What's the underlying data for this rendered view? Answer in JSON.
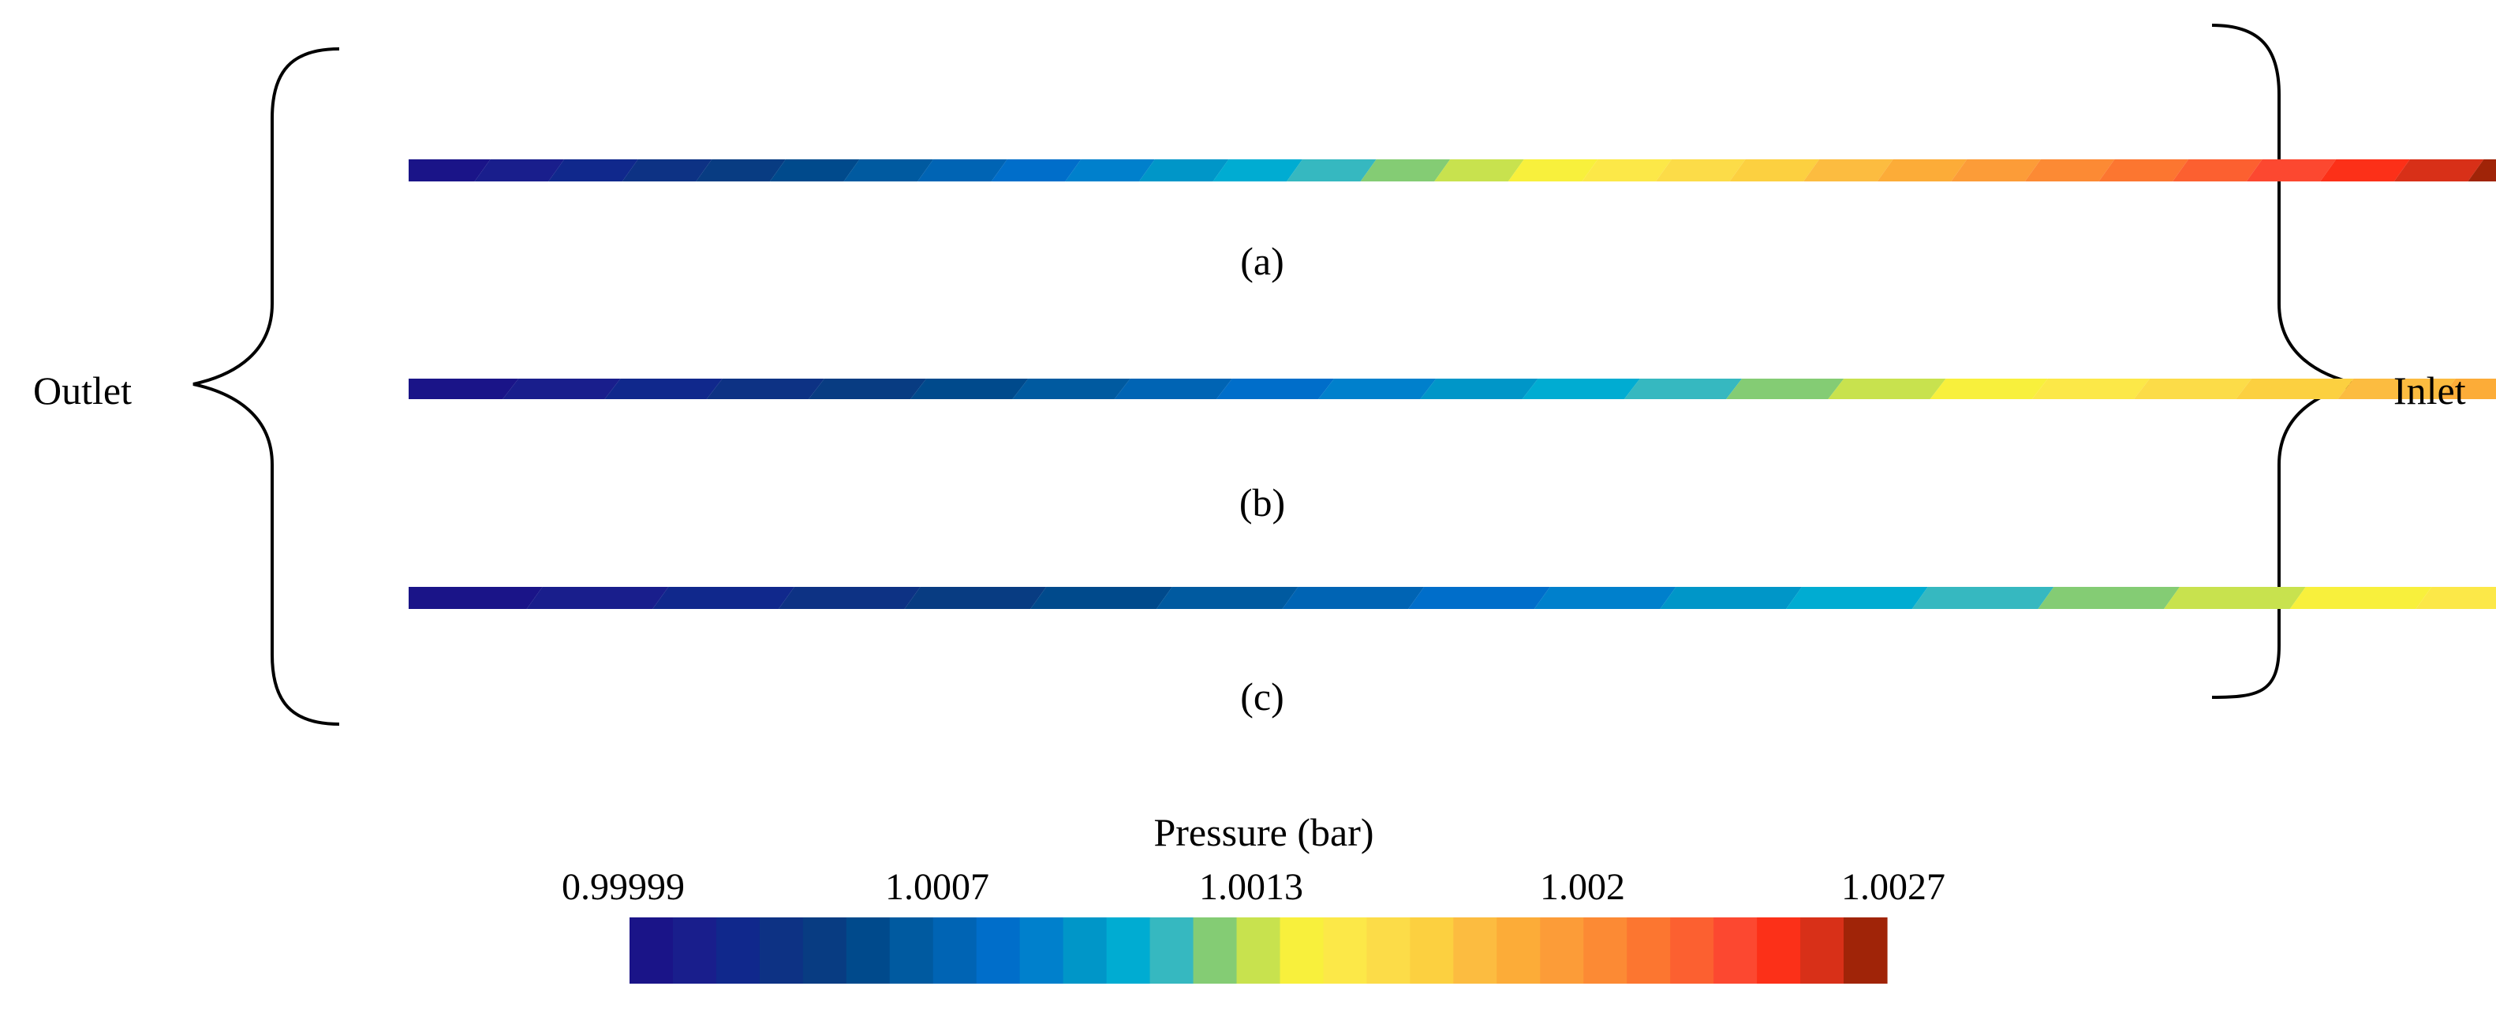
{
  "labels": {
    "outlet": "Outlet",
    "inlet": "Inlet",
    "panels": [
      "(a)",
      "(b)",
      "(c)"
    ]
  },
  "colorbar": {
    "title": "Pressure (bar)",
    "min": 0.99999,
    "max": 1.0027,
    "ticks": [
      "0.99999",
      "1.0007",
      "1.0013",
      "1.002",
      "1.0027"
    ],
    "colors": [
      "#1a1488",
      "#191e8c",
      "#10288c",
      "#0d3284",
      "#083c82",
      "#004a8c",
      "#005aa0",
      "#0064b4",
      "#006eca",
      "#0080cc",
      "#0096c8",
      "#00acd2",
      "#36b8c0",
      "#84cc74",
      "#c8e24e",
      "#f8f03c",
      "#fce848",
      "#fcdc48",
      "#fcd040",
      "#fcbc40",
      "#fcac38",
      "#fc9c38",
      "#fc8a34",
      "#fc7630",
      "#fc6030",
      "#fc4830",
      "#fc3018",
      "#d83018",
      "#a02408"
    ]
  },
  "bars": [
    {
      "id": "a",
      "stops": [
        0,
        29
      ]
    },
    {
      "id": "b",
      "stops": [
        0,
        21
      ]
    },
    {
      "id": "c",
      "stops": [
        0,
        17
      ]
    }
  ]
}
